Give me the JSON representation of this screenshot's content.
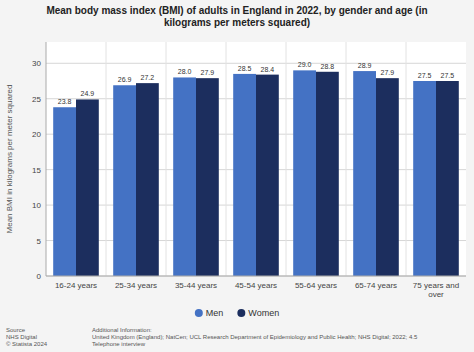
{
  "chart_data": {
    "type": "bar",
    "title": "Mean body mass index (BMI) of adults in England in 2022, by gender and age (in\nkilograms per meters squared)",
    "categories": [
      "16-24 years",
      "25-34 years",
      "35-44 years",
      "45-54 years",
      "55-64 years",
      "65-74 years",
      "75 years and\nover"
    ],
    "series": [
      {
        "name": "Men",
        "color": "#4472C4",
        "values": [
          23.8,
          26.9,
          28.0,
          28.5,
          29.0,
          28.9,
          27.5
        ],
        "value_labels": [
          "23.8",
          "26.9",
          "28.0",
          "28.5",
          "29.0",
          "28.9",
          "27.5"
        ]
      },
      {
        "name": "Women",
        "color": "#1C2E5E",
        "values": [
          24.9,
          27.2,
          27.9,
          28.4,
          28.8,
          27.9,
          27.5
        ],
        "value_labels": [
          "24.9",
          "27.2",
          "27.9",
          "28.4",
          "28.8",
          "27.9",
          "27.5"
        ]
      }
    ],
    "ylabel": "Mean BMI in kilograms per meter squared",
    "ylim": [
      0,
      33
    ],
    "yticks": [
      0,
      5,
      10,
      15,
      20,
      25,
      30
    ],
    "grid": true,
    "legend": "bottom",
    "data_labels": true,
    "annotations": [
      "Source\nNHS Digital\n© Statista 2024",
      "Additional Information:\nUnited Kingdom (England); NatCen; UCL Research Department of Epidemiology and Public Health; NHS Digital; 2022; 4.5\nTelephone interview"
    ]
  }
}
